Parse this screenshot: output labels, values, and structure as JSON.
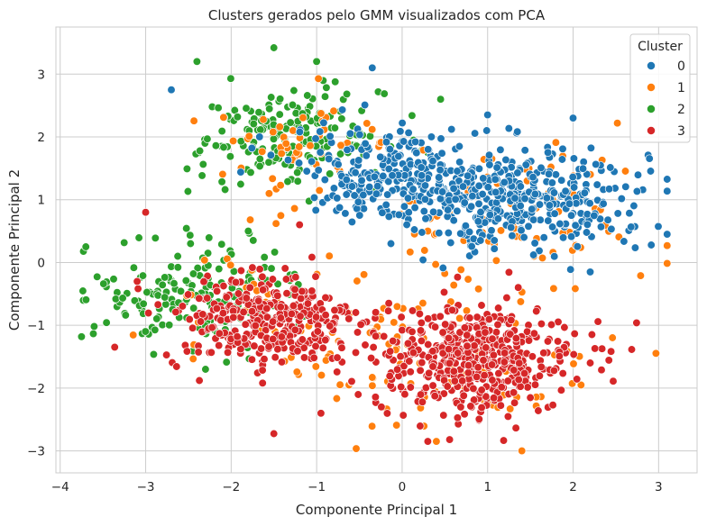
{
  "chart_data": {
    "type": "scatter",
    "title": "Clusters gerados pelo GMM visualizados com PCA",
    "xlabel": "Componente Principal 1",
    "ylabel": "Componente Principal 2",
    "xlim": [
      -4.05,
      3.45
    ],
    "ylim": [
      -3.35,
      3.75
    ],
    "x_ticks": [
      -4,
      -3,
      -2,
      -1,
      0,
      1,
      2,
      3
    ],
    "y_ticks": [
      -3,
      -2,
      -1,
      0,
      1,
      2,
      3
    ],
    "x_tick_labels": [
      "−4",
      "−3",
      "−2",
      "−1",
      "0",
      "1",
      "2",
      "3"
    ],
    "y_tick_labels": [
      "−3",
      "−2",
      "−1",
      "0",
      "1",
      "2",
      "3"
    ],
    "grid": true,
    "legend": {
      "title": "Cluster",
      "placement": "top-right"
    },
    "series": [
      {
        "name": "0",
        "color": "#1f77b4",
        "n": 620,
        "clusters": [
          {
            "cx": 1.35,
            "cy": 1.0,
            "sx": 0.75,
            "sy": 0.42,
            "w": 0.6
          },
          {
            "cx": 0.0,
            "cy": 1.45,
            "sx": 0.65,
            "sy": 0.35,
            "w": 0.4
          }
        ],
        "extra": [
          [
            -0.35,
            3.1
          ],
          [
            -2.7,
            2.75
          ],
          [
            2.0,
            2.3
          ],
          [
            1.0,
            2.35
          ],
          [
            3.1,
            0.45
          ],
          [
            2.2,
            -0.15
          ]
        ]
      },
      {
        "name": "1",
        "color": "#ff7f0e",
        "n": 260,
        "clusters": [
          {
            "cx": 1.4,
            "cy": 0.7,
            "sx": 0.8,
            "sy": 0.6,
            "w": 0.3
          },
          {
            "cx": 0.7,
            "cy": -1.6,
            "sx": 0.8,
            "sy": 0.55,
            "w": 0.3
          },
          {
            "cx": -1.3,
            "cy": -0.8,
            "sx": 0.8,
            "sy": 0.6,
            "w": 0.2
          },
          {
            "cx": -1.2,
            "cy": 1.8,
            "sx": 0.6,
            "sy": 0.4,
            "w": 0.2
          }
        ],
        "extra": [
          [
            1.4,
            -3.0
          ],
          [
            0.4,
            -2.85
          ],
          [
            -1.7,
            -0.45
          ],
          [
            0.3,
            0.5
          ]
        ]
      },
      {
        "name": "2",
        "color": "#2ca02c",
        "n": 380,
        "clusters": [
          {
            "cx": -1.3,
            "cy": 2.0,
            "sx": 0.55,
            "sy": 0.38,
            "w": 0.5
          },
          {
            "cx": -2.4,
            "cy": -0.5,
            "sx": 0.6,
            "sy": 0.4,
            "w": 0.5
          }
        ],
        "extra": [
          [
            -1.5,
            3.42
          ],
          [
            -2.4,
            3.2
          ],
          [
            -1.0,
            3.2
          ],
          [
            -3.7,
            0.25
          ],
          [
            -3.0,
            0.8
          ],
          [
            -2.3,
            -1.7
          ],
          [
            -1.8,
            0.5
          ],
          [
            0.45,
            2.6
          ]
        ]
      },
      {
        "name": "3",
        "color": "#d62728",
        "n": 800,
        "clusters": [
          {
            "cx": 0.85,
            "cy": -1.55,
            "sx": 0.6,
            "sy": 0.42,
            "w": 0.6
          },
          {
            "cx": -1.6,
            "cy": -0.95,
            "sx": 0.55,
            "sy": 0.4,
            "w": 0.4
          }
        ],
        "extra": [
          [
            -3.0,
            0.8
          ],
          [
            -0.95,
            -2.4
          ],
          [
            0.3,
            -2.85
          ],
          [
            -3.1,
            -0.3
          ],
          [
            -1.2,
            0.6
          ],
          [
            2.2,
            -1.6
          ]
        ]
      }
    ]
  }
}
